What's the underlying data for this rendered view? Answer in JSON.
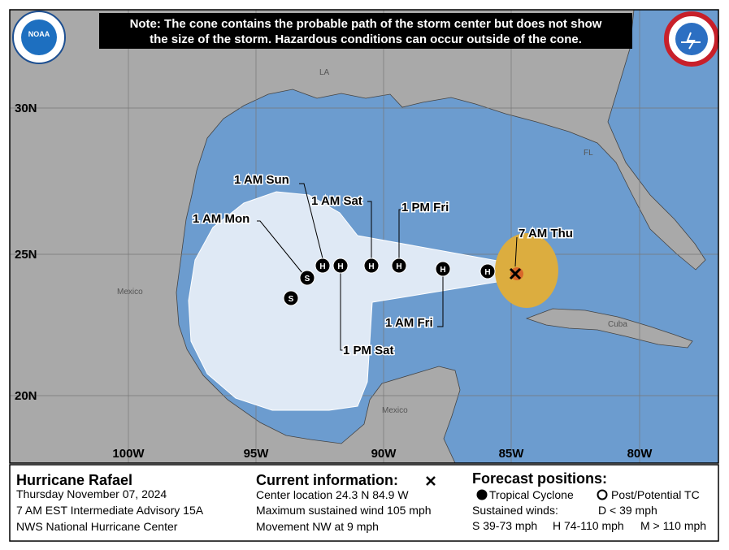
{
  "note": [
    "Note: The cone contains the probable path of the storm center but does not show",
    "the size of the storm. Hazardous conditions can occur outside of the cone."
  ],
  "logo": "NOAA",
  "latitudes": [
    "30N",
    "25N",
    "20N"
  ],
  "longitudes": [
    "100W",
    "95W",
    "90W",
    "85W",
    "80W"
  ],
  "places": [
    "LA",
    "FL",
    "Mexico",
    "Cuba",
    "Mexico"
  ],
  "current_position": "7 AM Thu",
  "forecast_points": [
    {
      "symbol": "H",
      "label": "1 AM Fri"
    },
    {
      "symbol": "H",
      "label": "1 PM Fri"
    },
    {
      "symbol": "H",
      "label": "1 AM Sat"
    },
    {
      "symbol": "H",
      "label": "1 PM Sat"
    },
    {
      "symbol": "H",
      "label": "1 AM Sun"
    },
    {
      "symbol": "S",
      "label": "1 AM Mon"
    },
    {
      "symbol": "S",
      "label": null
    },
    {
      "symbol": "H",
      "label": null
    }
  ],
  "storm": {
    "name": "Hurricane Rafael",
    "date": "Thursday November 07, 2024",
    "advisory": "7 AM EST Intermediate Advisory 15A",
    "agency": "NWS National Hurricane Center"
  },
  "current_info": {
    "title": "Current information:",
    "location": "Center location 24.3 N 84.9 W",
    "wind": "Maximum sustained wind 105 mph",
    "movement": "Movement NW at 9 mph"
  },
  "legend": {
    "title": "Forecast positions:",
    "tropical": "Tropical Cyclone",
    "post": "Post/Potential TC",
    "winds": "Sustained winds:",
    "d": "D < 39 mph",
    "s": "S 39-73 mph",
    "h": "H 74-110 mph",
    "m": "M > 110 mph"
  }
}
